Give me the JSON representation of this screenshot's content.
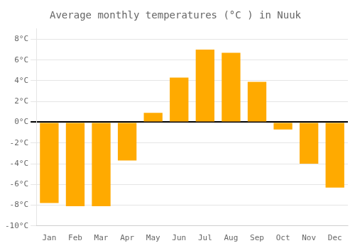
{
  "chart_data": {
    "type": "bar",
    "title": "Average monthly temperatures (°C ) in Nuuk",
    "categories": [
      "Jan",
      "Feb",
      "Mar",
      "Apr",
      "May",
      "Jun",
      "Jul",
      "Aug",
      "Sep",
      "Oct",
      "Nov",
      "Dec"
    ],
    "values": [
      -7.8,
      -8.1,
      -8.1,
      -3.7,
      0.9,
      4.3,
      7.0,
      6.7,
      3.9,
      -0.7,
      -4.0,
      -6.3
    ],
    "color": "#FFAA00",
    "ylim": [
      -10,
      9
    ],
    "yticks": [
      {
        "value": -10,
        "label": "-10°C"
      },
      {
        "value": -8,
        "label": "-8°C"
      },
      {
        "value": -6,
        "label": "-6°C"
      },
      {
        "value": -4,
        "label": "-4°C"
      },
      {
        "value": -2,
        "label": "-2°C"
      },
      {
        "value": 0,
        "label": "0°C"
      },
      {
        "value": 2,
        "label": "2°C"
      },
      {
        "value": 4,
        "label": "4°C"
      },
      {
        "value": 6,
        "label": "6°C"
      },
      {
        "value": 8,
        "label": "8°C"
      }
    ],
    "grid": true
  }
}
